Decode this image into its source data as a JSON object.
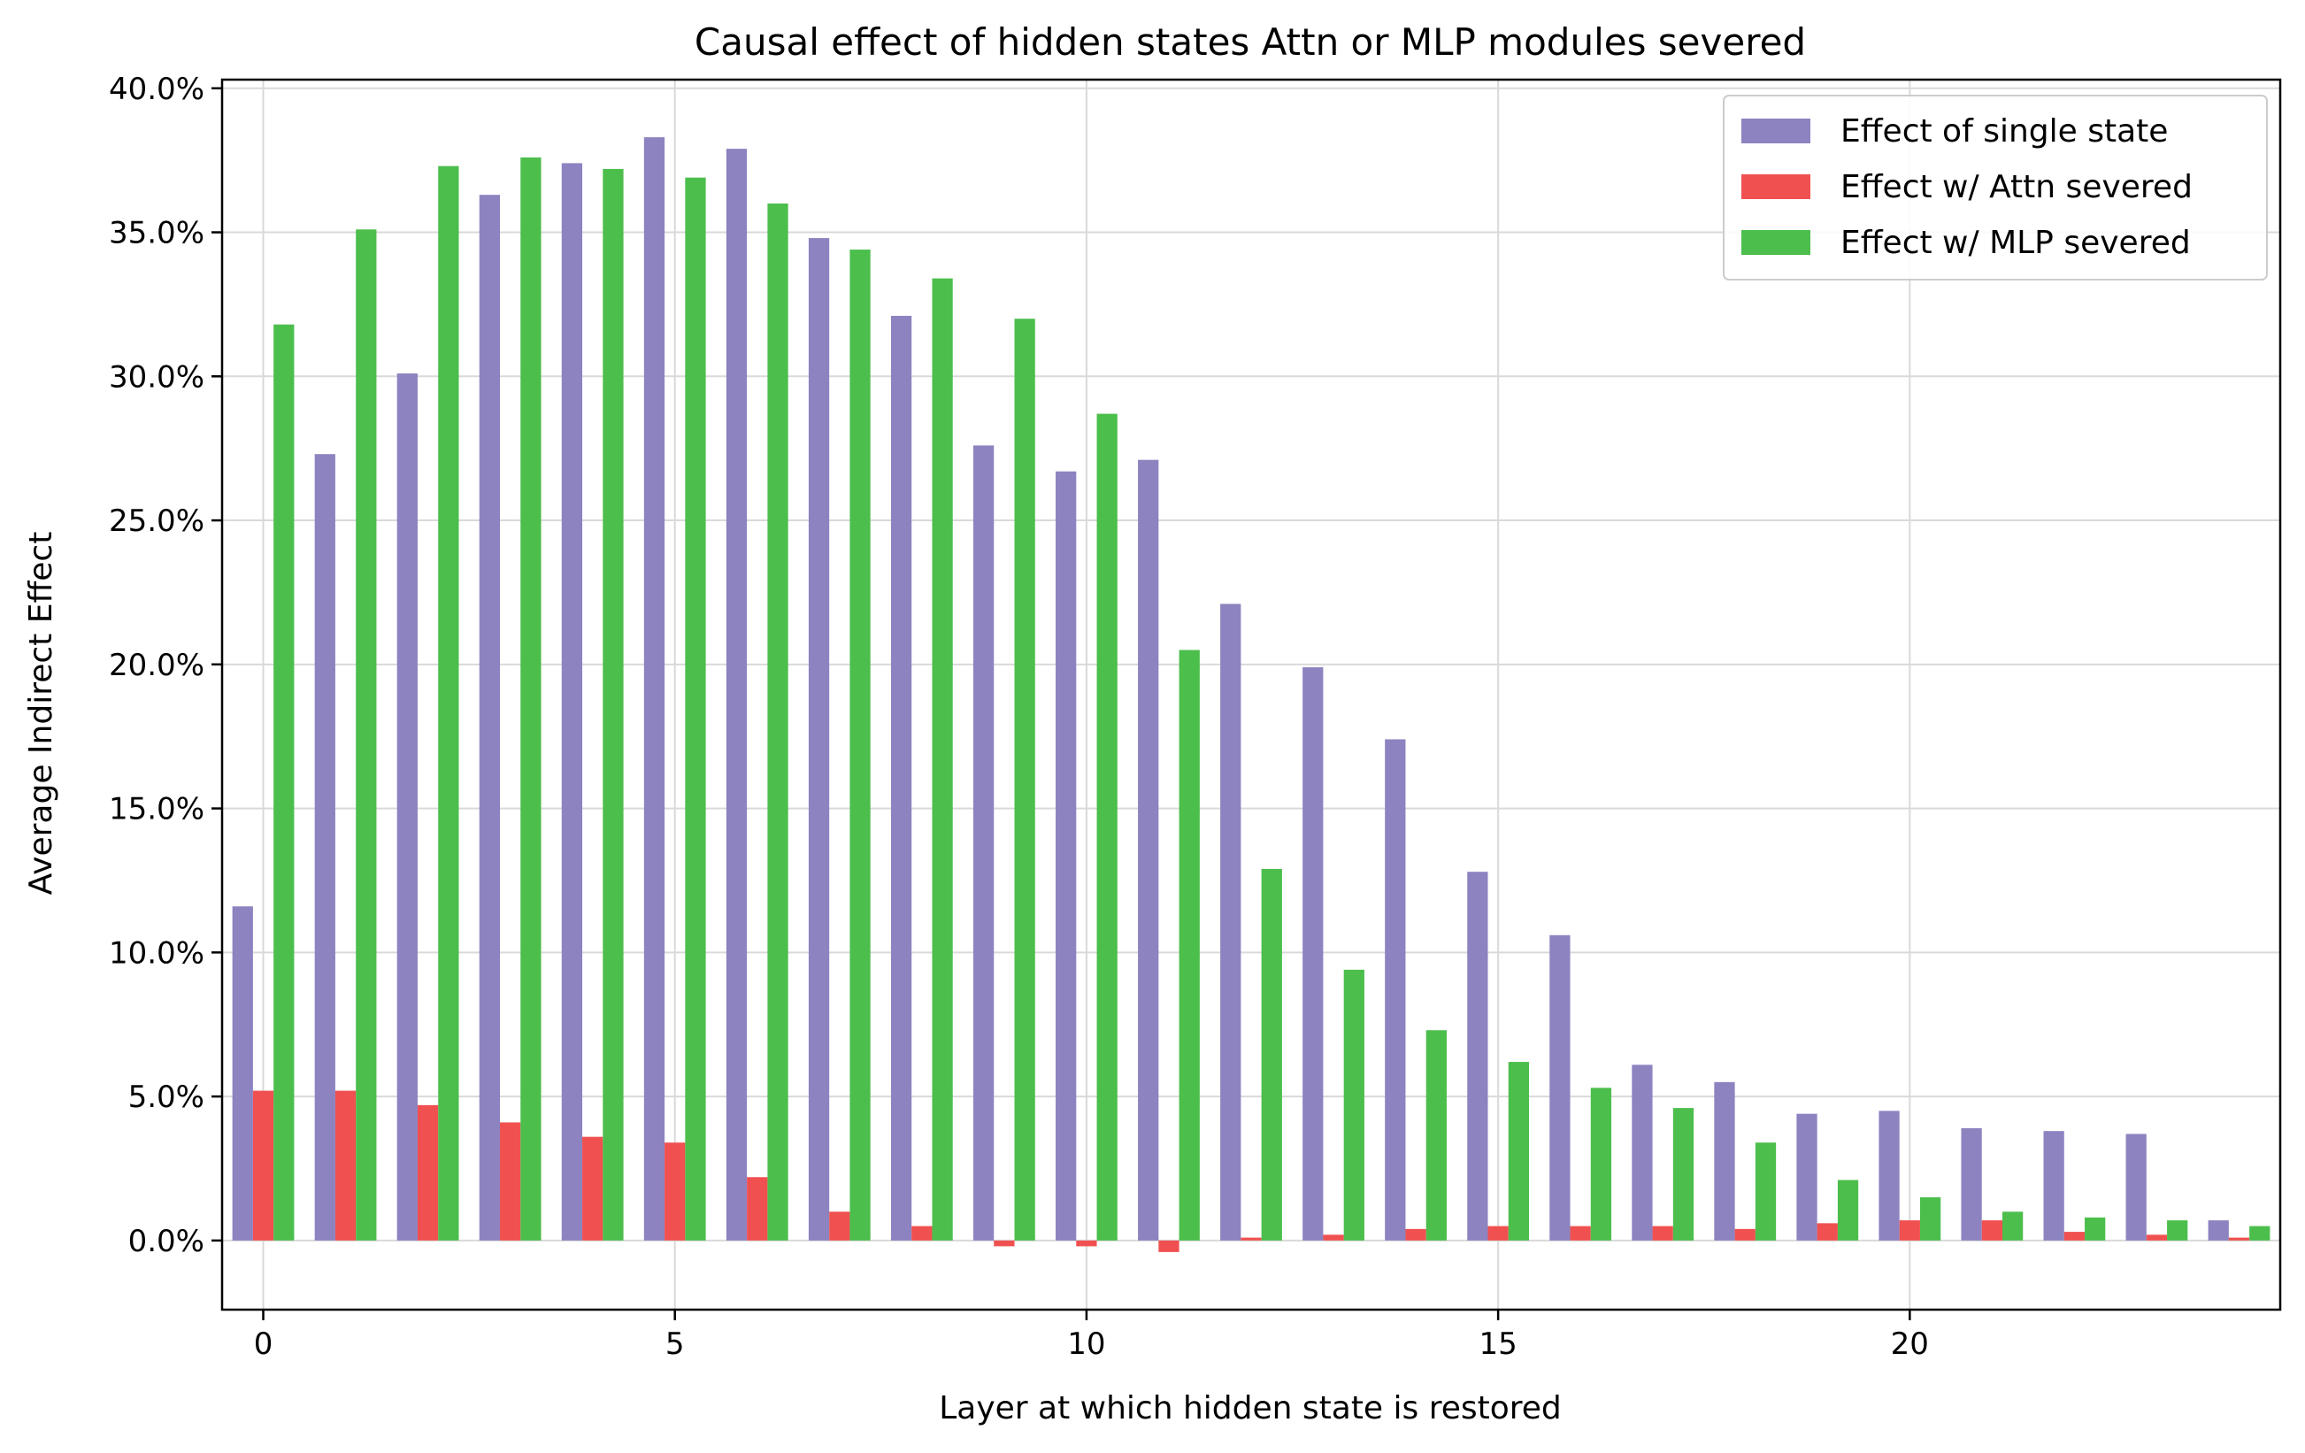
{
  "chart_data": {
    "type": "bar",
    "title": "Causal effect of hidden states Attn or MLP modules severed",
    "xlabel": "Layer at which hidden state is restored",
    "ylabel": "Average Indirect Effect",
    "x": [
      0,
      1,
      2,
      3,
      4,
      5,
      6,
      7,
      8,
      9,
      10,
      11,
      12,
      13,
      14,
      15,
      16,
      17,
      18,
      19,
      20,
      21,
      22,
      23,
      24
    ],
    "xlim": [
      -0.5,
      24.5
    ],
    "ylim": [
      -0.024,
      0.403
    ],
    "x_ticks": [
      0,
      5,
      10,
      15,
      20
    ],
    "x_tick_labels": [
      "0",
      "5",
      "10",
      "15",
      "20"
    ],
    "y_ticks": [
      0,
      0.05,
      0.1,
      0.15,
      0.2,
      0.25,
      0.3,
      0.35,
      0.4
    ],
    "y_tick_labels": [
      "0.0%",
      "5.0%",
      "10.0%",
      "15.0%",
      "20.0%",
      "25.0%",
      "30.0%",
      "35.0%",
      "40.0%"
    ],
    "grid": true,
    "legend_position": "top-right",
    "series": [
      {
        "name": "Effect of single state",
        "color": "#8c83c0",
        "values": [
          0.116,
          0.273,
          0.301,
          0.363,
          0.374,
          0.383,
          0.379,
          0.348,
          0.321,
          0.276,
          0.267,
          0.271,
          0.221,
          0.199,
          0.174,
          0.128,
          0.106,
          0.061,
          0.055,
          0.044,
          0.045,
          0.039,
          0.038,
          0.037,
          0.007
        ]
      },
      {
        "name": "Effect w/ Attn severed",
        "color": "#f05050",
        "values": [
          0.052,
          0.052,
          0.047,
          0.041,
          0.036,
          0.034,
          0.022,
          0.01,
          0.005,
          -0.002,
          -0.002,
          -0.004,
          0.001,
          0.002,
          0.004,
          0.005,
          0.005,
          0.005,
          0.004,
          0.006,
          0.007,
          0.007,
          0.003,
          0.002,
          0.001
        ]
      },
      {
        "name": "Effect w/ MLP severed",
        "color": "#4cbe4c",
        "values": [
          0.318,
          0.351,
          0.373,
          0.376,
          0.372,
          0.369,
          0.36,
          0.344,
          0.334,
          0.32,
          0.287,
          0.205,
          0.129,
          0.094,
          0.073,
          0.062,
          0.053,
          0.046,
          0.034,
          0.021,
          0.015,
          0.01,
          0.008,
          0.007,
          0.005
        ]
      }
    ]
  }
}
